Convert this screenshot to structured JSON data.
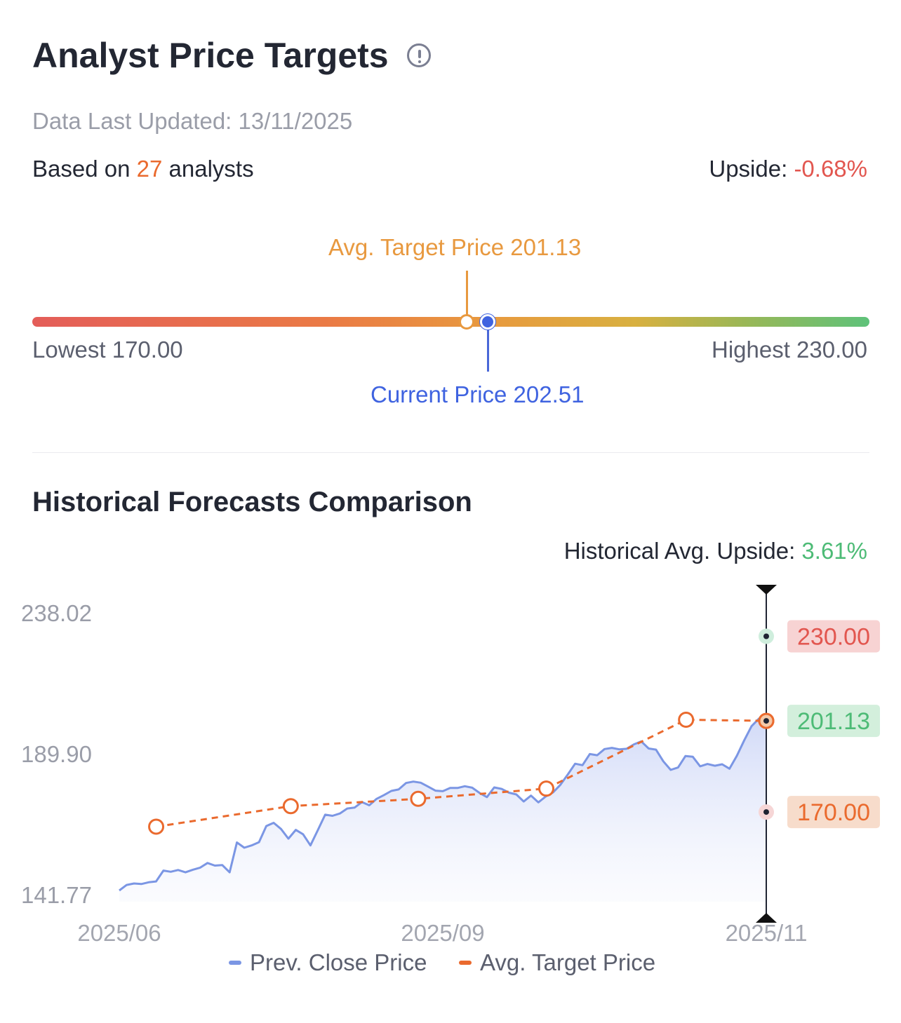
{
  "header": {
    "title": "Analyst Price Targets",
    "info_icon": "info-circle-icon",
    "last_updated": "Data Last Updated: 13/11/2025",
    "based_on_prefix": "Based on ",
    "analyst_count": "27",
    "based_on_suffix": " analysts",
    "upside_label": "Upside: ",
    "upside_value": "-0.68%"
  },
  "gauge": {
    "avg_target_label": "Avg. Target Price  201.13",
    "current_price_label": "Current Price  202.51",
    "lowest_label": "Lowest  170.00",
    "highest_label": "Highest  230.00",
    "lowest": 170.0,
    "highest": 230.0,
    "avg_target": 201.13,
    "current_price": 202.51
  },
  "history": {
    "title": "Historical Forecasts Comparison",
    "avg_upside_label": "Historical Avg. Upside: ",
    "avg_upside_value": "3.61%"
  },
  "colors": {
    "close_line": "#7b96e4",
    "target_line": "#ea6a2e",
    "high_badge_bg": "#f7d3d3",
    "high_badge_text": "#e2564f",
    "avg_badge_bg": "#d3efdc",
    "avg_badge_text": "#4dbb76",
    "low_badge_bg": "#f7dccb",
    "low_badge_text": "#ea6a2e"
  },
  "chart_data": {
    "type": "line",
    "y_ticks": [
      "238.02",
      "189.90",
      "141.77"
    ],
    "ylim": [
      141.77,
      238.02
    ],
    "x_ticks": [
      "2025/06",
      "2025/09",
      "2025/11"
    ],
    "legend": [
      "Prev. Close Price",
      "Avg. Target Price"
    ],
    "legend_position": "bottom",
    "series": [
      {
        "name": "Prev. Close Price",
        "values": [
          143.2,
          145.1,
          145.6,
          145.4,
          146.0,
          146.3,
          150.0,
          149.6,
          150.2,
          149.4,
          150.3,
          151.0,
          152.6,
          151.7,
          151.9,
          149.4,
          159.6,
          157.8,
          158.6,
          159.7,
          165.2,
          166.3,
          164.2,
          160.9,
          163.9,
          162.4,
          158.6,
          163.8,
          169.1,
          168.7,
          169.5,
          171.2,
          171.5,
          173.4,
          172.3,
          174.5,
          175.8,
          177.2,
          177.7,
          179.9,
          180.4,
          180.0,
          178.7,
          177.3,
          177.1,
          178.2,
          178.2,
          178.8,
          178.3,
          176.5,
          175.1,
          178.4,
          177.9,
          176.6,
          176.0,
          173.6,
          175.6,
          173.3,
          175.3,
          176.7,
          179.3,
          182.8,
          186.5,
          186.0,
          189.8,
          189.4,
          191.5,
          191.9,
          191.4,
          191.6,
          193.1,
          194.1,
          191.7,
          191.3,
          187.3,
          184.4,
          185.2,
          189.1,
          188.9,
          185.6,
          186.4,
          185.8,
          186.3,
          184.8,
          189.2,
          194.5,
          199.3,
          201.9,
          202.6
        ]
      },
      {
        "name": "Avg. Target Price",
        "points": [
          [
            0.057,
            165.0
          ],
          [
            0.265,
            172.0
          ],
          [
            0.462,
            174.5
          ],
          [
            0.66,
            178.0
          ],
          [
            0.876,
            201.5
          ],
          [
            1.0,
            201.13
          ]
        ]
      }
    ],
    "end_markers": {
      "highest": {
        "label": "230.00",
        "value": 230.0
      },
      "average": {
        "label": "201.13",
        "value": 201.13
      },
      "lowest": {
        "label": "170.00",
        "value": 170.0
      }
    }
  }
}
